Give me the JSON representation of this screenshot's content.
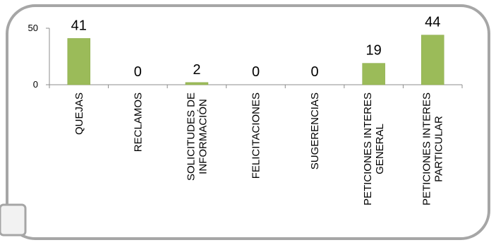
{
  "colors": {
    "bar": "#9BBB59",
    "bar_stroke": "#8aa84b",
    "frame_stroke": "#a6a6a6",
    "axis": "#8c8c8c",
    "tab_fill": "#f2f2f2"
  },
  "chart_data": {
    "type": "bar",
    "categories": [
      [
        "QUEJAS"
      ],
      [
        "RECLAMOS"
      ],
      [
        "SOLICITUDES DE",
        "INFORMACIÓN"
      ],
      [
        "FELICITACIONES"
      ],
      [
        "SUGERENCIAS"
      ],
      [
        "PETICIONES INTERES",
        "GENERAL"
      ],
      [
        "PETICIONES INTERES",
        "PARTICULAR"
      ]
    ],
    "values": [
      41,
      0,
      2,
      0,
      0,
      19,
      44
    ],
    "ylim": [
      0,
      50
    ],
    "yticks": [
      "0",
      "50"
    ],
    "data_labels": [
      "41",
      "0",
      "2",
      "0",
      "0",
      "19",
      "44"
    ],
    "grid": false,
    "legend": "none"
  }
}
